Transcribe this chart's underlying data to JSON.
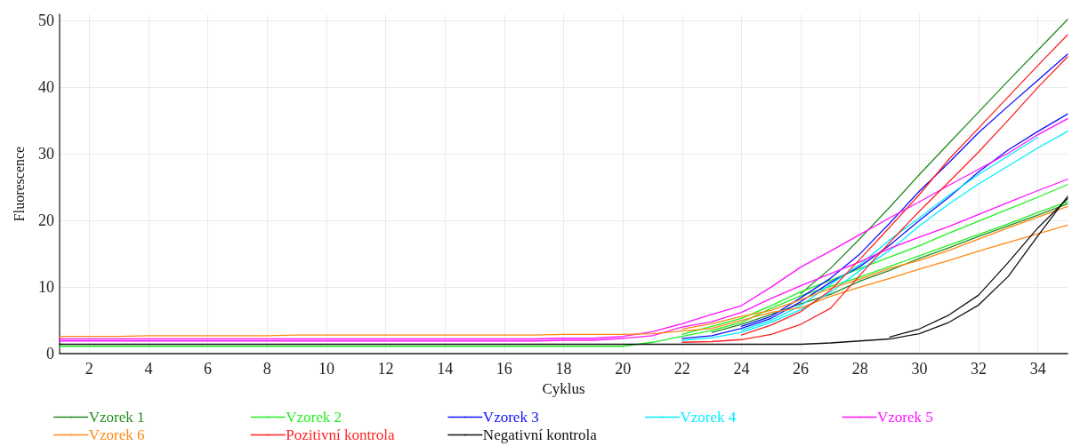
{
  "chart_data": {
    "type": "line",
    "xlabel": "Cyklus",
    "ylabel": "Fluorescence",
    "x": [
      1,
      2,
      3,
      4,
      5,
      6,
      7,
      8,
      9,
      10,
      11,
      12,
      13,
      14,
      15,
      16,
      17,
      18,
      19,
      20,
      21,
      22,
      23,
      24,
      25,
      26,
      27,
      28,
      29,
      30,
      31,
      32,
      33,
      34,
      35
    ],
    "xlim": [
      1,
      35
    ],
    "xticks": [
      2,
      4,
      6,
      8,
      10,
      12,
      14,
      16,
      18,
      20,
      22,
      24,
      26,
      28,
      30,
      32,
      34
    ],
    "ylim": [
      0,
      51
    ],
    "yticks": [
      0,
      10,
      20,
      30,
      40,
      50
    ],
    "grid": true,
    "legend": "bottom",
    "marker": "none",
    "line_style": "solid",
    "series": [
      {
        "name": "Vzorek 1",
        "color": "#228b22",
        "values": [
          null,
          null,
          null,
          null,
          null,
          null,
          null,
          null,
          null,
          null,
          null,
          null,
          null,
          null,
          null,
          null,
          null,
          null,
          null,
          null,
          null,
          null,
          null,
          null,
          null,
          9.0,
          12.8,
          17.3,
          22.0,
          26.9,
          31.6,
          36.3,
          41.0,
          45.6,
          50.2
        ]
      },
      {
        "color": "#228b22",
        "values": [
          null,
          null,
          null,
          null,
          null,
          null,
          null,
          null,
          null,
          null,
          null,
          null,
          null,
          null,
          null,
          null,
          null,
          null,
          null,
          null,
          null,
          null,
          3.2,
          4.4,
          5.9,
          7.5,
          8.9,
          10.9,
          12.5,
          14.3,
          15.9,
          17.6,
          19.2,
          20.8,
          22.5
        ]
      },
      {
        "name": "Vzorek 2",
        "color": "#22ee22",
        "values": [
          null,
          null,
          null,
          null,
          null,
          null,
          null,
          null,
          null,
          null,
          null,
          null,
          null,
          null,
          null,
          null,
          null,
          null,
          null,
          null,
          null,
          2.9,
          4.1,
          5.3,
          7.2,
          9.3,
          11.0,
          12.8,
          14.5,
          16.2,
          18.1,
          19.9,
          21.7,
          23.5,
          25.4
        ]
      },
      {
        "color": "#22ee22",
        "values": [
          1.1,
          1.1,
          1.1,
          1.1,
          1.1,
          1.1,
          1.1,
          1.1,
          1.1,
          1.1,
          1.1,
          1.1,
          1.1,
          1.1,
          1.1,
          1.1,
          1.1,
          1.1,
          1.1,
          1.1,
          1.7,
          2.6,
          3.5,
          4.7,
          6.8,
          8.7,
          10.1,
          11.5,
          13.1,
          14.7,
          16.3,
          17.9,
          19.5,
          21.2,
          22.8
        ]
      },
      {
        "name": "Vzorek 3",
        "color": "#1010ff",
        "values": [
          null,
          null,
          null,
          null,
          null,
          null,
          null,
          null,
          null,
          null,
          null,
          null,
          null,
          null,
          null,
          null,
          null,
          null,
          null,
          null,
          null,
          null,
          null,
          4.1,
          5.6,
          8.4,
          11.3,
          15.0,
          19.6,
          24.4,
          28.7,
          33.2,
          37.2,
          41.1,
          45.0
        ]
      },
      {
        "color": "#1010ff",
        "values": [
          null,
          null,
          null,
          null,
          null,
          null,
          null,
          null,
          null,
          null,
          null,
          null,
          null,
          null,
          null,
          null,
          null,
          null,
          null,
          null,
          null,
          2.3,
          2.7,
          3.8,
          5.3,
          7.8,
          10.7,
          13.1,
          16.3,
          20.0,
          23.5,
          27.3,
          30.6,
          33.4,
          36.0
        ]
      },
      {
        "name": "Vzorek 4",
        "color": "#00eeff",
        "values": [
          null,
          null,
          null,
          null,
          null,
          null,
          null,
          null,
          null,
          null,
          null,
          null,
          null,
          null,
          null,
          null,
          null,
          null,
          null,
          null,
          null,
          null,
          null,
          3.5,
          5.0,
          7.2,
          10.4,
          13.4,
          17.1,
          20.4,
          23.8,
          26.9,
          29.7,
          32.5,
          null
        ]
      },
      {
        "color": "#00eeff",
        "values": [
          null,
          null,
          null,
          null,
          null,
          null,
          null,
          null,
          null,
          null,
          null,
          null,
          null,
          null,
          null,
          null,
          null,
          null,
          null,
          null,
          null,
          2.0,
          2.4,
          3.2,
          4.7,
          6.6,
          9.2,
          12.5,
          15.5,
          19.2,
          22.5,
          25.5,
          28.2,
          30.9,
          33.4
        ]
      },
      {
        "name": "Vzorek 5",
        "color": "#ff11ff",
        "values": [
          2.2,
          2.2,
          2.2,
          2.2,
          2.2,
          2.2,
          2.2,
          2.2,
          2.2,
          2.2,
          2.2,
          2.2,
          2.2,
          2.2,
          2.2,
          2.2,
          2.2,
          2.3,
          2.3,
          2.6,
          3.3,
          4.5,
          5.9,
          7.2,
          10.0,
          13.0,
          15.4,
          17.9,
          20.4,
          22.8,
          25.3,
          27.7,
          30.1,
          32.9,
          35.3
        ]
      },
      {
        "color": "#ff11ff",
        "values": [
          1.9,
          1.9,
          1.9,
          1.9,
          1.9,
          1.9,
          1.9,
          1.9,
          1.9,
          1.9,
          1.9,
          1.9,
          1.9,
          1.9,
          1.9,
          1.9,
          1.9,
          2.0,
          2.0,
          2.3,
          2.7,
          4.0,
          4.8,
          6.2,
          8.3,
          10.2,
          12.0,
          13.8,
          15.8,
          17.5,
          19.1,
          20.9,
          22.7,
          24.5,
          26.2
        ]
      },
      {
        "name": "Vzorek 6",
        "color": "#ff8811",
        "values": [
          null,
          null,
          null,
          null,
          null,
          null,
          null,
          null,
          null,
          null,
          null,
          null,
          null,
          null,
          null,
          null,
          null,
          null,
          null,
          null,
          null,
          3.7,
          4.5,
          5.6,
          6.5,
          8.1,
          9.8,
          11.2,
          12.8,
          14.0,
          15.5,
          17.2,
          18.9,
          20.5,
          22.1
        ]
      },
      {
        "color": "#ff8811",
        "values": [
          2.6,
          2.6,
          2.6,
          2.7,
          2.7,
          2.7,
          2.7,
          2.7,
          2.8,
          2.8,
          2.8,
          2.8,
          2.8,
          2.8,
          2.8,
          2.8,
          2.8,
          2.9,
          2.9,
          2.9,
          3.0,
          3.4,
          3.8,
          5.0,
          6.2,
          6.9,
          8.6,
          10.0,
          11.3,
          12.7,
          14.0,
          15.4,
          16.7,
          18.0,
          19.3
        ]
      },
      {
        "name": "Pozitivní kontrola",
        "color": "#ff2222",
        "values": [
          null,
          null,
          null,
          null,
          null,
          null,
          null,
          null,
          null,
          null,
          null,
          null,
          null,
          null,
          null,
          null,
          null,
          null,
          null,
          null,
          null,
          null,
          null,
          2.8,
          4.3,
          6.3,
          9.5,
          14.2,
          19.0,
          23.9,
          29.2,
          33.9,
          38.6,
          43.3,
          47.9
        ]
      },
      {
        "color": "#ff2222",
        "values": [
          null,
          null,
          null,
          null,
          null,
          null,
          null,
          null,
          null,
          null,
          null,
          null,
          null,
          null,
          null,
          null,
          null,
          null,
          null,
          null,
          null,
          1.7,
          1.8,
          2.1,
          2.9,
          4.4,
          6.8,
          11.8,
          16.7,
          21.4,
          25.8,
          30.3,
          35.1,
          40.0,
          44.6
        ]
      },
      {
        "name": "Negativní kontrola",
        "color": "#111111",
        "values": [
          null,
          null,
          null,
          null,
          null,
          null,
          null,
          null,
          null,
          null,
          null,
          null,
          null,
          null,
          null,
          null,
          null,
          null,
          null,
          null,
          null,
          null,
          null,
          null,
          null,
          null,
          null,
          null,
          2.5,
          3.7,
          5.8,
          8.8,
          13.7,
          18.9,
          23.3
        ]
      },
      {
        "color": "#111111",
        "values": [
          1.4,
          1.4,
          1.4,
          1.4,
          1.4,
          1.4,
          1.4,
          1.4,
          1.4,
          1.4,
          1.4,
          1.4,
          1.4,
          1.4,
          1.4,
          1.4,
          1.4,
          1.4,
          1.4,
          1.4,
          1.4,
          1.4,
          1.4,
          1.4,
          1.4,
          1.4,
          1.6,
          1.9,
          2.2,
          3.0,
          4.7,
          7.3,
          11.6,
          17.7,
          23.6
        ]
      }
    ]
  }
}
